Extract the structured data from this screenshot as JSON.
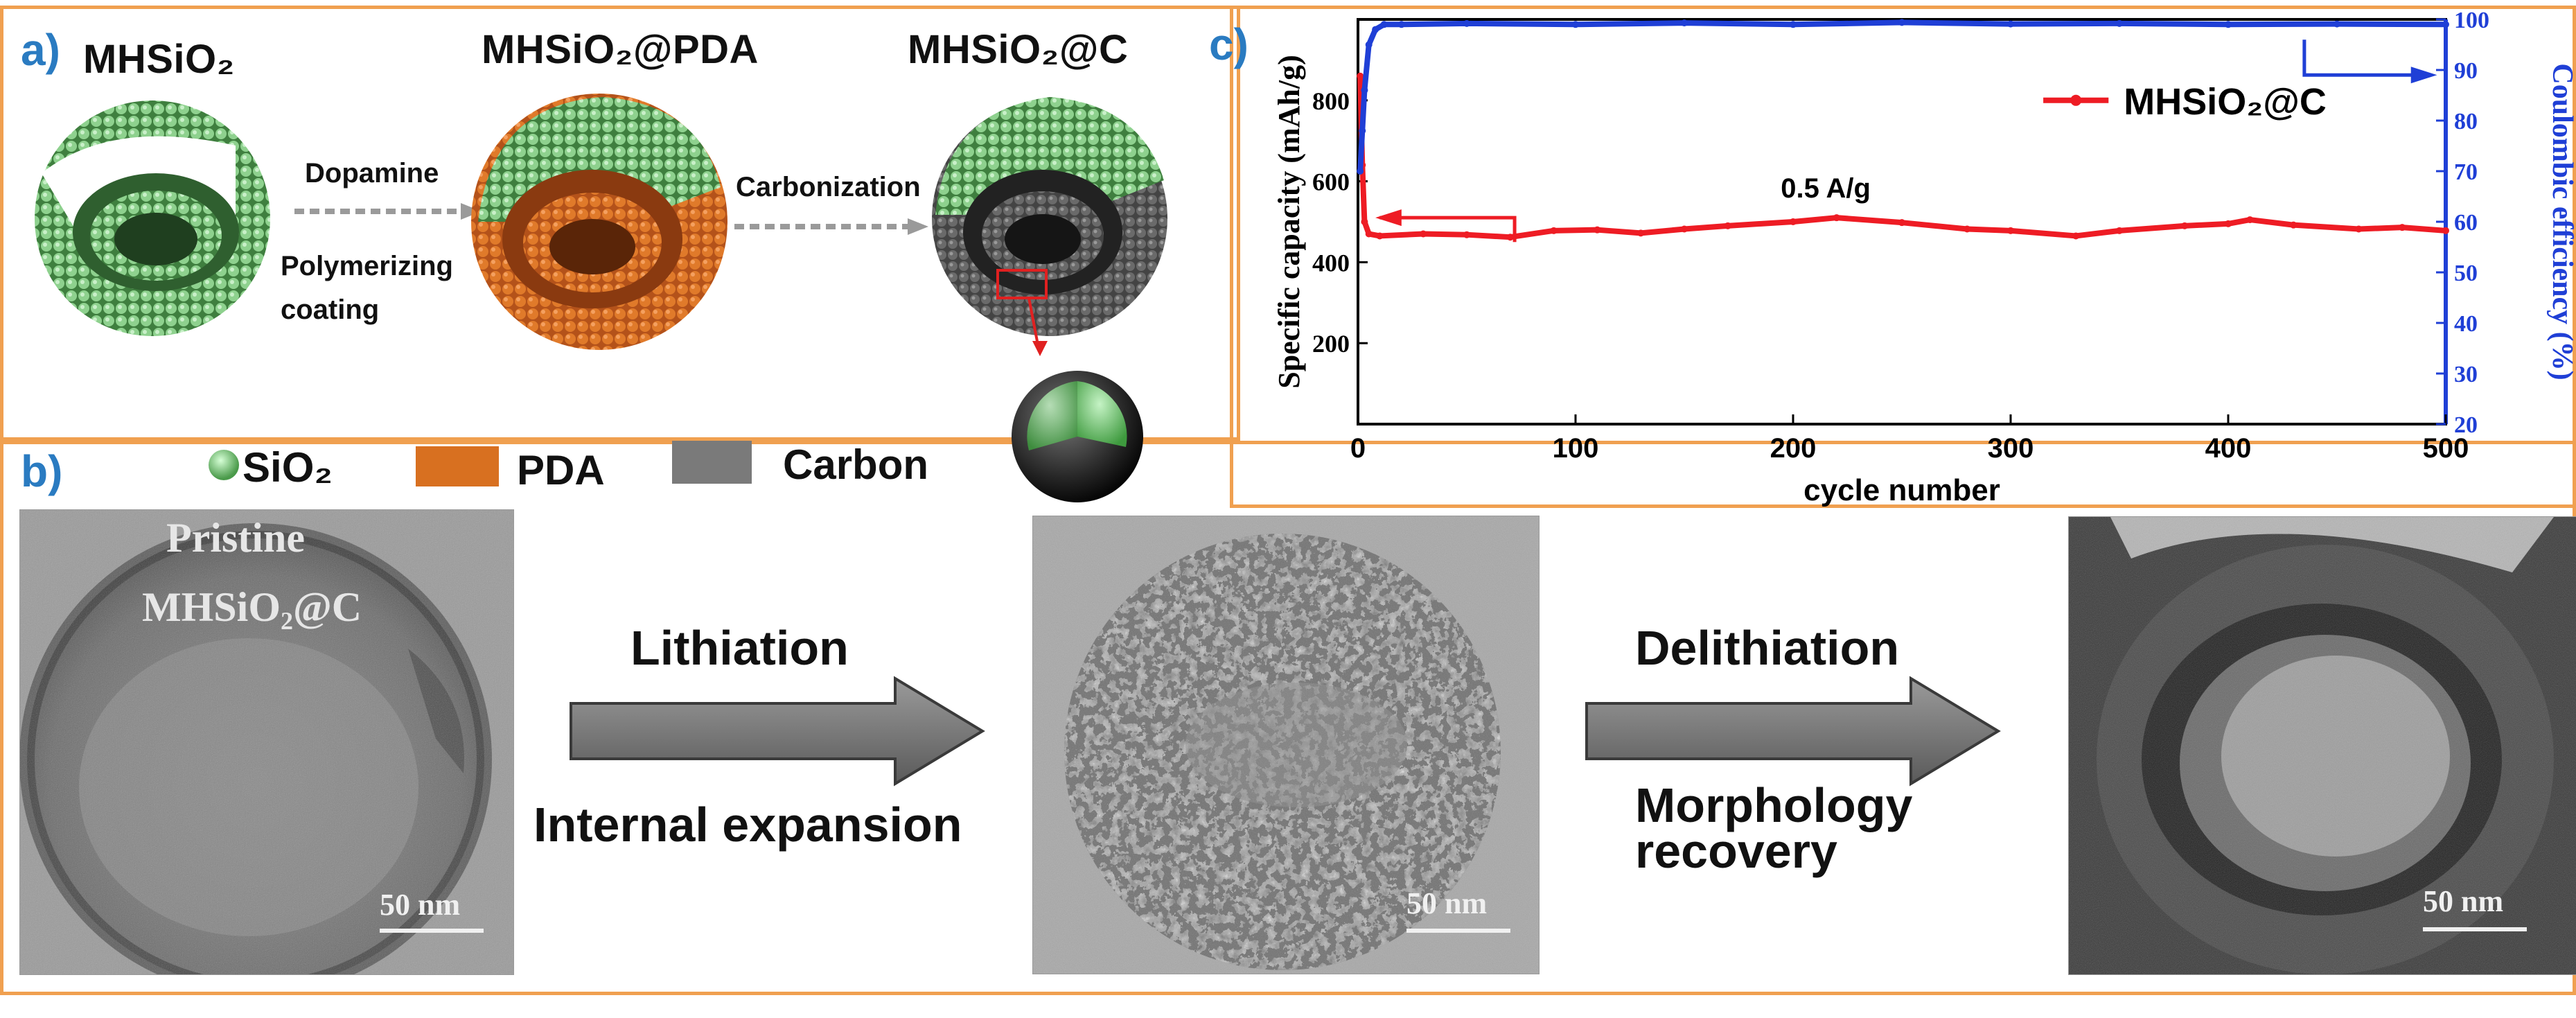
{
  "panel_a": {
    "letter": "a)",
    "label_1": "MHSiO₂",
    "label_2": "MHSiO₂@PDA",
    "label_3": "MHSiO₂@C",
    "step1_top": "Dopamine",
    "step1_bottom_1": "Polymerizing",
    "step1_bottom_2": "coating",
    "step2": "Carbonization"
  },
  "legend": {
    "letter": "b)",
    "items": [
      {
        "label": "SiO₂",
        "color": "#7cc47c"
      },
      {
        "label": "PDA",
        "color": "#d2691e"
      },
      {
        "label": "Carbon",
        "color": "#7a7a7a"
      }
    ]
  },
  "panel_b": {
    "pristine_line1": "Pristine",
    "pristine_line2": "MHSiO₂@C",
    "scale": "50 nm",
    "step1_top": "Lithiation",
    "step1_bottom": "Internal expansion",
    "step2_top": "Delithiation",
    "step2_bottom_1": "Morphology",
    "step2_bottom_2": "recovery"
  },
  "chart_data": {
    "type": "line",
    "panel_letter": "c)",
    "xlabel": "cycle number",
    "ylabel": "Specific capacity (mAh/g)",
    "y2label": "Coulombic efficiency (%)",
    "xlim": [
      0,
      500
    ],
    "ylim": [
      0,
      1000
    ],
    "y2lim": [
      20,
      100
    ],
    "x_ticks": [
      0,
      100,
      200,
      300,
      400,
      500
    ],
    "y_ticks": [
      200,
      400,
      600,
      800
    ],
    "y2_ticks": [
      20,
      30,
      40,
      50,
      60,
      70,
      80,
      90,
      100
    ],
    "annotation": "0.5 A/g",
    "legend_label": "MHSiO₂@C",
    "series": [
      {
        "name": "MHSiO₂@C capacity",
        "axis": "left",
        "color": "#ee1c24",
        "x": [
          1,
          2,
          3,
          5,
          10,
          30,
          50,
          70,
          90,
          110,
          130,
          150,
          170,
          200,
          220,
          250,
          280,
          300,
          330,
          350,
          380,
          400,
          410,
          430,
          460,
          480,
          500
        ],
        "values": [
          860,
          640,
          500,
          470,
          465,
          470,
          468,
          462,
          478,
          480,
          472,
          482,
          490,
          500,
          510,
          498,
          482,
          478,
          465,
          478,
          490,
          495,
          505,
          492,
          482,
          486,
          478
        ]
      },
      {
        "name": "Coulombic efficiency",
        "axis": "right",
        "color": "#1f3fd6",
        "x": [
          1,
          2,
          3,
          5,
          8,
          12,
          20,
          50,
          100,
          150,
          200,
          250,
          300,
          350,
          400,
          450,
          500
        ],
        "values": [
          70,
          78,
          86,
          95,
          98,
          99,
          99,
          99.2,
          99,
          99.3,
          99,
          99.4,
          99.1,
          99.2,
          99,
          99.1,
          99
        ]
      }
    ]
  }
}
